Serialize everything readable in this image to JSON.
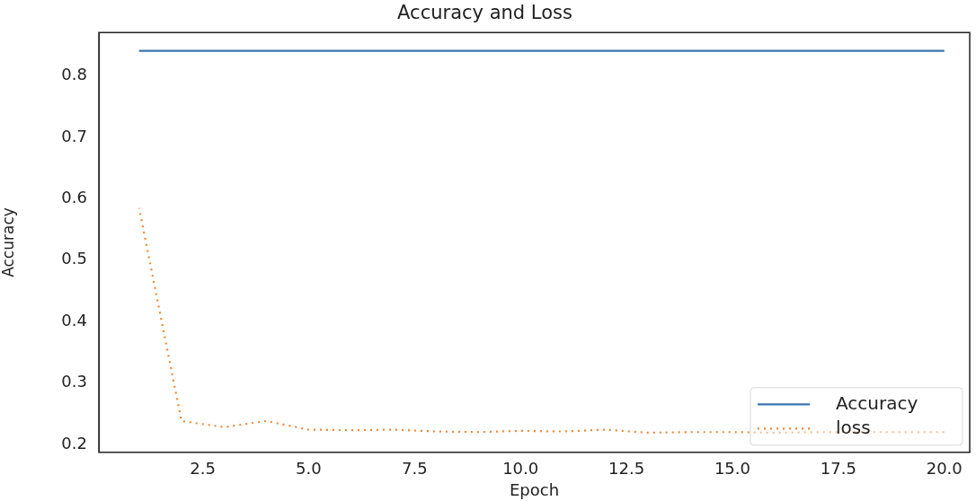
{
  "chart_data": {
    "type": "line",
    "title": "Accuracy and Loss",
    "xlabel": "Epoch",
    "ylabel": "Accuracy",
    "x": [
      1,
      2,
      3,
      4,
      5,
      6,
      7,
      8,
      9,
      10,
      11,
      12,
      13,
      14,
      15,
      16,
      17,
      18,
      19,
      20
    ],
    "series": [
      {
        "name": "Accuracy",
        "color": "#3b75af",
        "line_style": "solid",
        "values": [
          0.841,
          0.841,
          0.841,
          0.841,
          0.841,
          0.841,
          0.841,
          0.841,
          0.841,
          0.841,
          0.841,
          0.841,
          0.841,
          0.841,
          0.841,
          0.841,
          0.841,
          0.841,
          0.841,
          0.841
        ]
      },
      {
        "name": "loss",
        "color": "#ef8636",
        "line_style": "dotted",
        "values": [
          0.585,
          0.238,
          0.228,
          0.238,
          0.224,
          0.223,
          0.224,
          0.221,
          0.22,
          0.222,
          0.221,
          0.224,
          0.219,
          0.22,
          0.22,
          0.219,
          0.22,
          0.22,
          0.22,
          0.22
        ]
      }
    ],
    "xlim": [
      0.05,
      20.6
    ],
    "xticks": [
      {
        "value": 2.5,
        "label": "2.5"
      },
      {
        "value": 5,
        "label": "5.0"
      },
      {
        "value": 7.5,
        "label": "7.5"
      },
      {
        "value": 10,
        "label": "10.0"
      },
      {
        "value": 12.5,
        "label": "12.5"
      },
      {
        "value": 15,
        "label": "15.0"
      },
      {
        "value": 17.5,
        "label": "17.5"
      },
      {
        "value": 20,
        "label": "20.0"
      }
    ],
    "ylim": [
      0.187,
      0.871
    ],
    "yticks": [
      0.2,
      0.3,
      0.4,
      0.5,
      0.6,
      0.7,
      0.8
    ],
    "grid": false,
    "legend": "bottom right",
    "marker": "none"
  }
}
